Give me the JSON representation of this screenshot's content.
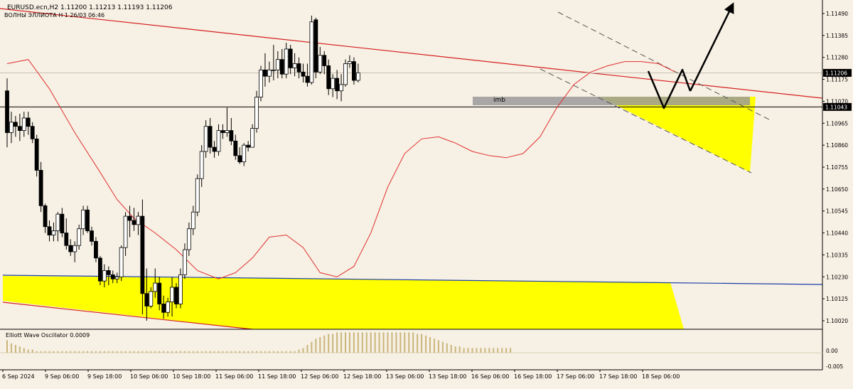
{
  "header": {
    "symbol_line": "EURUSD.ecn,H2  1.11200 1.11213 1.11193 1.11206",
    "indicator_line": "ВОЛНЫ ЭЛЛИОТА H 1 26/03 06:46"
  },
  "oscillator": {
    "label": "Elliott Wave Oscillator 0.0009",
    "ticks": [
      "0.00",
      "-0.005"
    ],
    "bar_values": [
      0.0008,
      0.0006,
      0.0005,
      0.0004,
      0.0003,
      0.0002,
      0.0002,
      0.0001,
      0.0001,
      0.0001,
      0.0001,
      0.0001,
      0.0001,
      0.0001,
      0.0001,
      0.0001,
      0.0001,
      0.0001,
      0.0001,
      0.0001,
      0.0001,
      0.0001,
      0.0001,
      0.0001,
      0.0001,
      0.0001,
      0.0001,
      0.0001,
      0.0001,
      0.0001,
      0.0001,
      0.0001,
      0.0001,
      0.0001,
      0.0001,
      0.0001,
      0.0001,
      0.0001,
      0.0001,
      0.0001,
      0.0001,
      0.0001,
      0.0001,
      0.0001,
      0.0001,
      0.0001,
      0.0001,
      0.0001,
      0.0001,
      0.0001,
      0.0001,
      0.0001,
      0.0001,
      0.0001,
      0.0001,
      0.0001,
      0.0001,
      0.0001,
      0.0001,
      0.0001,
      0.0001,
      0.0001,
      0.0001,
      0.0001,
      0.0001,
      0.0001,
      0.0001,
      0.0001,
      0.0001,
      0.0002,
      0.0003,
      0.0005,
      0.0007,
      0.0009,
      0.001,
      0.0011,
      0.0012,
      0.0012,
      0.0013,
      0.0013,
      0.0013,
      0.0013,
      0.0013,
      0.0013,
      0.0013,
      0.0013,
      0.0013,
      0.0013,
      0.0013,
      0.0013,
      0.0013,
      0.0013,
      0.0013,
      0.0013,
      0.0013,
      0.0013,
      0.0013,
      0.0012,
      0.0012,
      0.0011,
      0.001,
      0.0009,
      0.0008,
      0.0007,
      0.0006,
      0.0005,
      0.0004,
      0.0004,
      0.0003,
      0.0003,
      0.0003,
      0.0003,
      0.0003,
      0.0003,
      0.0003,
      0.0003,
      0.0003,
      0.0003,
      0.0003,
      0.0003
    ]
  },
  "annotations": {
    "imb_label": "imb"
  },
  "colors": {
    "background": "#f7f0e4",
    "bull_candle": "#ffffff",
    "bear_candle": "#000000",
    "ma_line": "#e03030",
    "trend_line": "#d42020",
    "zone_yellow": "#ffff00",
    "imbalance": "#9a9a9a",
    "blue_line": "#1c3fa8",
    "osc_bars": "#c9b57a"
  },
  "chart_data": {
    "type": "candlestick",
    "symbol": "EURUSD.ecn",
    "timeframe": "H2",
    "ohlc_current": {
      "open": 1.112,
      "high": 1.11213,
      "low": 1.11193,
      "close": 1.11206
    },
    "ylim": [
      1.1,
      1.116
    ],
    "y_ticks": [
      "1.11490",
      "1.11385",
      "1.11280",
      "1.11175",
      "1.11070",
      "1.10965",
      "1.10860",
      "1.10755",
      "1.10650",
      "1.10545",
      "1.10440",
      "1.10335",
      "1.10230",
      "1.10125",
      "1.10020"
    ],
    "price_labels": [
      {
        "label": "1.11206",
        "value": 1.11206
      },
      {
        "label": "1.11043",
        "value": 1.11043
      }
    ],
    "x_labels": [
      "6 Sep 2024",
      "9 Sep 06:00",
      "9 Sep 18:00",
      "10 Sep 06:00",
      "10 Sep 18:00",
      "11 Sep 06:00",
      "11 Sep 18:00",
      "12 Sep 06:00",
      "12 Sep 18:00",
      "13 Sep 06:00",
      "13 Sep 18:00",
      "16 Sep 06:00",
      "16 Sep 18:00",
      "17 Sep 06:00",
      "17 Sep 18:00",
      "18 Sep 06:00"
    ],
    "candles": [
      [
        1.1112,
        1.1118,
        1.1085,
        1.1092
      ],
      [
        1.1092,
        1.1102,
        1.1087,
        1.1097
      ],
      [
        1.1097,
        1.11,
        1.109,
        1.1095
      ],
      [
        1.1095,
        1.1101,
        1.1088,
        1.1093
      ],
      [
        1.1093,
        1.1102,
        1.109,
        1.1099
      ],
      [
        1.1099,
        1.1102,
        1.1091,
        1.1095
      ],
      [
        1.1095,
        1.1097,
        1.1087,
        1.1089
      ],
      [
        1.1089,
        1.1091,
        1.1071,
        1.1074
      ],
      [
        1.1074,
        1.1078,
        1.1054,
        1.1057
      ],
      [
        1.1057,
        1.1058,
        1.1044,
        1.1047
      ],
      [
        1.1047,
        1.105,
        1.104,
        1.1043
      ],
      [
        1.1043,
        1.1049,
        1.104,
        1.1045
      ],
      [
        1.1045,
        1.1054,
        1.104,
        1.1053
      ],
      [
        1.1053,
        1.1056,
        1.1042,
        1.1044
      ],
      [
        1.1044,
        1.1051,
        1.1036,
        1.1038
      ],
      [
        1.1038,
        1.1041,
        1.1033,
        1.1035
      ],
      [
        1.1035,
        1.104,
        1.103,
        1.1038
      ],
      [
        1.1038,
        1.1048,
        1.1036,
        1.1046
      ],
      [
        1.1046,
        1.1057,
        1.1043,
        1.1055
      ],
      [
        1.1055,
        1.1057,
        1.1044,
        1.1045
      ],
      [
        1.1045,
        1.1047,
        1.1038,
        1.104
      ],
      [
        1.104,
        1.1042,
        1.103,
        1.1032
      ],
      [
        1.1032,
        1.1033,
        1.1019,
        1.1021
      ],
      [
        1.1021,
        1.1029,
        1.1018,
        1.1026
      ],
      [
        1.1026,
        1.1028,
        1.1019,
        1.1024
      ],
      [
        1.1024,
        1.1026,
        1.102,
        1.1022
      ],
      [
        1.1022,
        1.1025,
        1.102,
        1.1023
      ],
      [
        1.1023,
        1.1038,
        1.1021,
        1.1037
      ],
      [
        1.1037,
        1.1054,
        1.1033,
        1.1052
      ],
      [
        1.1052,
        1.1057,
        1.1042,
        1.105
      ],
      [
        1.105,
        1.1056,
        1.1045,
        1.1048
      ],
      [
        1.1048,
        1.1054,
        1.1043,
        1.1052
      ],
      [
        1.1052,
        1.106,
        1.1005,
        1.1015
      ],
      [
        1.1015,
        1.1027,
        1.1002,
        1.1009
      ],
      [
        1.1009,
        1.1018,
        1.1008,
        1.1016
      ],
      [
        1.1016,
        1.1027,
        1.1013,
        1.102
      ],
      [
        1.102,
        1.1023,
        1.1007,
        1.101
      ],
      [
        1.101,
        1.1014,
        1.1003,
        1.1006
      ],
      [
        1.1006,
        1.1013,
        1.1004,
        1.1011
      ],
      [
        1.1011,
        1.1023,
        1.1004,
        1.1018
      ],
      [
        1.1018,
        1.102,
        1.1008,
        1.101
      ],
      [
        1.101,
        1.1027,
        1.1008,
        1.1024
      ],
      [
        1.1024,
        1.1039,
        1.1022,
        1.1036
      ],
      [
        1.1036,
        1.1049,
        1.1033,
        1.1046
      ],
      [
        1.1046,
        1.1057,
        1.1043,
        1.1054
      ],
      [
        1.1054,
        1.1072,
        1.1052,
        1.107
      ],
      [
        1.107,
        1.1086,
        1.1066,
        1.1083
      ],
      [
        1.1083,
        1.1098,
        1.108,
        1.1095
      ],
      [
        1.1095,
        1.1099,
        1.1082,
        1.1085
      ],
      [
        1.1085,
        1.1088,
        1.108,
        1.1083
      ],
      [
        1.1083,
        1.1096,
        1.1081,
        1.1093
      ],
      [
        1.1093,
        1.1096,
        1.1089,
        1.1092
      ],
      [
        1.1092,
        1.1104,
        1.109,
        1.1093
      ],
      [
        1.1093,
        1.1099,
        1.1086,
        1.1088
      ],
      [
        1.1088,
        1.1091,
        1.1079,
        1.1081
      ],
      [
        1.1081,
        1.1085,
        1.1077,
        1.1078
      ],
      [
        1.1078,
        1.1087,
        1.1076,
        1.1086
      ],
      [
        1.1086,
        1.1088,
        1.1083,
        1.1085
      ],
      [
        1.1085,
        1.1096,
        1.1085,
        1.1094
      ],
      [
        1.1094,
        1.1112,
        1.1092,
        1.1109
      ],
      [
        1.1109,
        1.1124,
        1.1107,
        1.1122
      ],
      [
        1.1122,
        1.113,
        1.1114,
        1.1119
      ],
      [
        1.1119,
        1.1126,
        1.1116,
        1.1122
      ],
      [
        1.1122,
        1.1134,
        1.1117,
        1.1122
      ],
      [
        1.1122,
        1.1131,
        1.1118,
        1.1127
      ],
      [
        1.1127,
        1.1132,
        1.1118,
        1.112
      ],
      [
        1.112,
        1.1135,
        1.1118,
        1.1132
      ],
      [
        1.1132,
        1.1134,
        1.112,
        1.1123
      ],
      [
        1.1123,
        1.113,
        1.1119,
        1.1125
      ],
      [
        1.1125,
        1.1128,
        1.1118,
        1.1121
      ],
      [
        1.1121,
        1.1125,
        1.1116,
        1.1119
      ],
      [
        1.1119,
        1.1125,
        1.1114,
        1.1116
      ],
      [
        1.1116,
        1.1148,
        1.1115,
        1.1145
      ],
      [
        1.1146,
        1.1147,
        1.1118,
        1.1121
      ],
      [
        1.1121,
        1.1133,
        1.112,
        1.1129
      ],
      [
        1.1129,
        1.1131,
        1.112,
        1.1124
      ],
      [
        1.1124,
        1.1127,
        1.111,
        1.1113
      ],
      [
        1.1113,
        1.112,
        1.1109,
        1.1118
      ],
      [
        1.1118,
        1.1122,
        1.1108,
        1.1112
      ],
      [
        1.1112,
        1.112,
        1.1107,
        1.1115
      ],
      [
        1.1115,
        1.1127,
        1.1114,
        1.1125
      ],
      [
        1.1125,
        1.1129,
        1.1123,
        1.1126
      ],
      [
        1.1126,
        1.1128,
        1.1115,
        1.1117
      ],
      [
        1.1117,
        1.1125,
        1.1116,
        1.11206
      ]
    ],
    "ma_points": [
      [
        0,
        1.1125
      ],
      [
        5,
        1.1127
      ],
      [
        10,
        1.1113
      ],
      [
        16,
        1.1092
      ],
      [
        22,
        1.1073
      ],
      [
        26,
        1.106
      ],
      [
        30,
        1.1051
      ],
      [
        35,
        1.1044
      ],
      [
        40,
        1.1036
      ],
      [
        45,
        1.1026
      ],
      [
        50,
        1.1022
      ],
      [
        54,
        1.1025
      ],
      [
        58,
        1.1032
      ],
      [
        62,
        1.1042
      ],
      [
        66,
        1.1043
      ],
      [
        70,
        1.1037
      ],
      [
        74,
        1.1025
      ],
      [
        78,
        1.1023
      ],
      [
        82,
        1.1028
      ],
      [
        86,
        1.1044
      ],
      [
        90,
        1.1066
      ],
      [
        94,
        1.1082
      ],
      [
        98,
        1.1089
      ],
      [
        102,
        1.109
      ],
      [
        106,
        1.1087
      ],
      [
        110,
        1.1083
      ],
      [
        114,
        1.1081
      ],
      [
        118,
        1.108
      ],
      [
        122,
        1.1082
      ],
      [
        126,
        1.109
      ],
      [
        130,
        1.1104
      ],
      [
        134,
        1.1115
      ],
      [
        138,
        1.1121
      ],
      [
        142,
        1.1124
      ],
      [
        146,
        1.1126
      ],
      [
        150,
        1.1126
      ],
      [
        154,
        1.1125
      ],
      [
        158,
        1.1121
      ]
    ],
    "annotations": [
      {
        "type": "zone",
        "name": "imbalance",
        "label": "imb",
        "price_top": 1.11088,
        "price_bottom": 1.11043
      },
      {
        "type": "hline",
        "value": 1.11043
      }
    ]
  }
}
